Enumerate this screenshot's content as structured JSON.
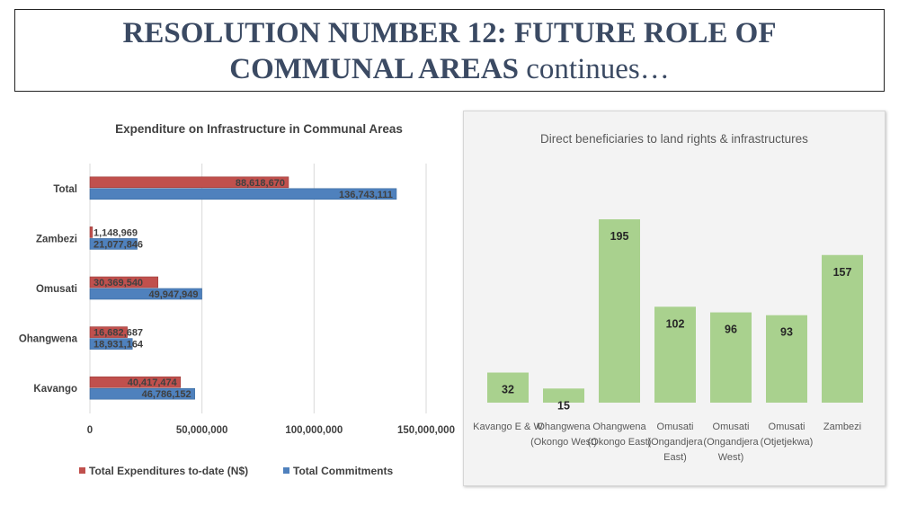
{
  "slide": {
    "title_line1": "RESOLUTION NUMBER 12: FUTURE  ROLE OF",
    "title_line2_bold": "COMMUNAL AREAS",
    "title_line2_rest": " continues…"
  },
  "chart_data": [
    {
      "type": "bar",
      "orientation": "horizontal",
      "title": "Expenditure on Infrastructure in Communal Areas",
      "categories": [
        "Total",
        "Zambezi",
        "Omusati",
        "Ohangwena",
        "Kavango"
      ],
      "series": [
        {
          "name": "Total Expenditures to-date (N$)",
          "color": "#c0504d",
          "values": [
            88618670,
            1148969,
            30369540,
            16682687,
            40417474
          ],
          "labels": [
            "88,618,670",
            "1,148,969",
            "30,369,540",
            "16,682,687",
            "40,417,474"
          ]
        },
        {
          "name": "Total Commitments",
          "color": "#4f81bd",
          "values": [
            136743111,
            21077846,
            49947949,
            18931164,
            46786152
          ],
          "labels": [
            "136,743,111",
            "21,077,846",
            "49,947,949",
            "18,931,164",
            "46,786,152"
          ]
        }
      ],
      "xlim": [
        0,
        150000000
      ],
      "ticks": [
        "0",
        "50,000,000",
        "100,000,000",
        "150,000,000"
      ],
      "grid": true,
      "legend_position": "bottom"
    },
    {
      "type": "bar",
      "title": "Direct beneficiaries to land rights & infrastructures",
      "categories": [
        [
          "Kavango E & W"
        ],
        [
          "Ohangwena",
          "(Okongo West)"
        ],
        [
          "Ohangwena",
          "(Okongo East)"
        ],
        [
          "Omusati",
          "(Ongandjera",
          "East)"
        ],
        [
          "Omusati",
          "(Ongandjera",
          "West)"
        ],
        [
          "Omusati",
          "(Otjetjekwa)"
        ],
        [
          "Zambezi"
        ]
      ],
      "values": [
        32,
        15,
        195,
        102,
        96,
        93,
        157
      ],
      "color": "#a9d18e",
      "ylim": [
        0,
        210
      ]
    }
  ]
}
